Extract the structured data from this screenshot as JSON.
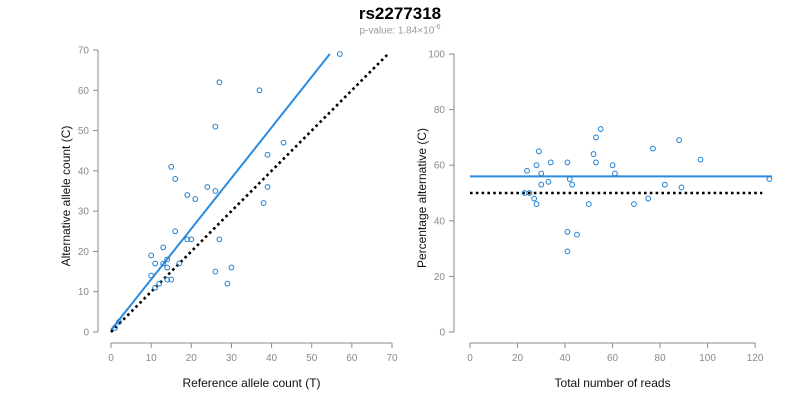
{
  "title": "rs2277318",
  "subtitle": {
    "prefix": "p-value: 1.84×10",
    "exponent": "-6"
  },
  "colors": {
    "points": "#1f7fd1",
    "fit_line": "#2b8be0",
    "reference_line": "#000000",
    "axis": "#8a8a8a"
  },
  "chart_data": [
    {
      "type": "scatter",
      "xlabel": "Reference allele count (T)",
      "ylabel": "Alternative allele count (C)",
      "xlim": [
        0,
        70
      ],
      "ylim": [
        0,
        70
      ],
      "xticks": [
        0,
        10,
        20,
        30,
        40,
        50,
        60,
        70
      ],
      "yticks": [
        0,
        10,
        20,
        30,
        40,
        50,
        60,
        70
      ],
      "points": [
        {
          "x": 1,
          "y": 1
        },
        {
          "x": 2,
          "y": 2.5
        },
        {
          "x": 10,
          "y": 14
        },
        {
          "x": 10,
          "y": 19
        },
        {
          "x": 11,
          "y": 11
        },
        {
          "x": 11,
          "y": 17
        },
        {
          "x": 12,
          "y": 12
        },
        {
          "x": 13,
          "y": 21
        },
        {
          "x": 13,
          "y": 17
        },
        {
          "x": 14,
          "y": 13
        },
        {
          "x": 14,
          "y": 16
        },
        {
          "x": 14,
          "y": 18
        },
        {
          "x": 15,
          "y": 13
        },
        {
          "x": 15,
          "y": 41
        },
        {
          "x": 16,
          "y": 38
        },
        {
          "x": 16,
          "y": 25
        },
        {
          "x": 17,
          "y": 17
        },
        {
          "x": 19,
          "y": 34
        },
        {
          "x": 19,
          "y": 23
        },
        {
          "x": 20,
          "y": 23
        },
        {
          "x": 21,
          "y": 33
        },
        {
          "x": 24,
          "y": 36
        },
        {
          "x": 26,
          "y": 51
        },
        {
          "x": 26,
          "y": 35
        },
        {
          "x": 26,
          "y": 15
        },
        {
          "x": 27,
          "y": 62
        },
        {
          "x": 27,
          "y": 23
        },
        {
          "x": 29,
          "y": 12
        },
        {
          "x": 30,
          "y": 16
        },
        {
          "x": 37,
          "y": 60
        },
        {
          "x": 38,
          "y": 32
        },
        {
          "x": 39,
          "y": 44
        },
        {
          "x": 39,
          "y": 36
        },
        {
          "x": 43,
          "y": 47
        },
        {
          "x": 57,
          "y": 69
        }
      ],
      "lines": [
        {
          "kind": "fit",
          "style": "solid",
          "x": [
            0,
            54.5
          ],
          "y": [
            0.5,
            69
          ]
        },
        {
          "kind": "reference",
          "style": "dotted",
          "x": [
            0,
            69
          ],
          "y": [
            0,
            69
          ]
        }
      ]
    },
    {
      "type": "scatter",
      "xlabel": "Total number of reads",
      "ylabel": "Percentage alternative (C)",
      "xlim": [
        0,
        125
      ],
      "ylim": [
        0,
        100
      ],
      "xticks": [
        0,
        20,
        40,
        60,
        80,
        100,
        120
      ],
      "yticks": [
        0,
        20,
        40,
        60,
        80,
        100
      ],
      "points": [
        {
          "x": 23,
          "y": 50
        },
        {
          "x": 24,
          "y": 58
        },
        {
          "x": 25,
          "y": 50
        },
        {
          "x": 27,
          "y": 48
        },
        {
          "x": 28,
          "y": 46
        },
        {
          "x": 28,
          "y": 60
        },
        {
          "x": 29,
          "y": 65
        },
        {
          "x": 30,
          "y": 53
        },
        {
          "x": 30,
          "y": 57
        },
        {
          "x": 33,
          "y": 54
        },
        {
          "x": 34,
          "y": 61
        },
        {
          "x": 41,
          "y": 61
        },
        {
          "x": 41,
          "y": 36
        },
        {
          "x": 41,
          "y": 29
        },
        {
          "x": 42,
          "y": 55
        },
        {
          "x": 43,
          "y": 53
        },
        {
          "x": 45,
          "y": 35
        },
        {
          "x": 50,
          "y": 46
        },
        {
          "x": 52,
          "y": 64
        },
        {
          "x": 53,
          "y": 70
        },
        {
          "x": 53,
          "y": 61
        },
        {
          "x": 55,
          "y": 73
        },
        {
          "x": 60,
          "y": 60
        },
        {
          "x": 61,
          "y": 57
        },
        {
          "x": 69,
          "y": 46
        },
        {
          "x": 75,
          "y": 48
        },
        {
          "x": 77,
          "y": 66
        },
        {
          "x": 82,
          "y": 53
        },
        {
          "x": 88,
          "y": 69
        },
        {
          "x": 89,
          "y": 52
        },
        {
          "x": 97,
          "y": 62
        },
        {
          "x": 126,
          "y": 55
        }
      ],
      "lines": [
        {
          "kind": "fit",
          "style": "solid",
          "x": [
            0,
            127
          ],
          "y": [
            56,
            56
          ]
        },
        {
          "kind": "reference",
          "style": "dotted",
          "x": [
            0,
            123
          ],
          "y": [
            50,
            50
          ]
        }
      ]
    }
  ]
}
